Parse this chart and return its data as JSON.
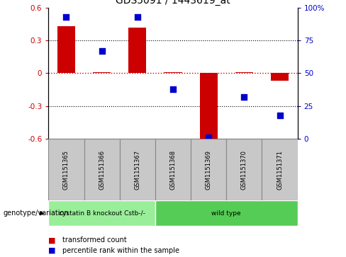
{
  "title": "GDS5091 / 1443619_at",
  "samples": [
    "GSM1151365",
    "GSM1151366",
    "GSM1151367",
    "GSM1151368",
    "GSM1151369",
    "GSM1151370",
    "GSM1151371"
  ],
  "bar_values": [
    0.43,
    0.01,
    0.42,
    0.01,
    -0.62,
    0.01,
    -0.07
  ],
  "dot_values": [
    93,
    67,
    93,
    38,
    1,
    32,
    18
  ],
  "bar_color": "#cc0000",
  "dot_color": "#0000cc",
  "ylim": [
    -0.6,
    0.6
  ],
  "right_ylim": [
    0,
    100
  ],
  "yticks_left": [
    -0.6,
    -0.3,
    0.0,
    0.3,
    0.6
  ],
  "yticks_right": [
    0,
    25,
    50,
    75,
    100
  ],
  "dotted_line_y": [
    0.3,
    -0.3
  ],
  "zero_line_color": "#cc0000",
  "groups": [
    {
      "label": "cystatin B knockout Cstb-/-",
      "samples": [
        0,
        1,
        2
      ],
      "color": "#99ee99"
    },
    {
      "label": "wild type",
      "samples": [
        3,
        4,
        5,
        6
      ],
      "color": "#55cc55"
    }
  ],
  "genotype_label": "genotype/variation",
  "legend_bar_label": "transformed count",
  "legend_dot_label": "percentile rank within the sample",
  "background_color": "#ffffff",
  "plot_bg_color": "#ffffff",
  "tick_label_color_left": "#cc0000",
  "tick_label_color_right": "#0000cc",
  "bar_width": 0.5,
  "dot_size": 40,
  "sample_box_color": "#c8c8c8",
  "sample_box_edge_color": "#888888"
}
